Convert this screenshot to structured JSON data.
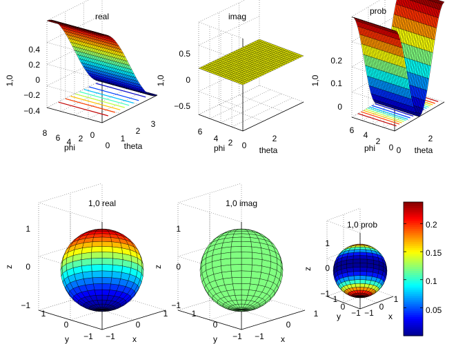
{
  "colors": {
    "jet": [
      "#00008f",
      "#0000ff",
      "#0080ff",
      "#00ffff",
      "#80ff80",
      "#ffff00",
      "#ff8000",
      "#ff0000",
      "#800000"
    ],
    "mesh_line": "#000000",
    "axis": "#000000",
    "grid": "#8c8c8c"
  },
  "chart_data": [
    {
      "type": "surface",
      "title": "real",
      "zlabel": "1,0",
      "xlabel": "theta",
      "ylabel": "phi",
      "z_ticks": [
        "0.4",
        "0.2",
        "0",
        "−0.2",
        "−0.4"
      ],
      "x_ticks": [
        "0",
        "1",
        "2",
        "3"
      ],
      "y_ticks": [
        "8",
        "6",
        "4",
        "2",
        "0"
      ],
      "zlim": [
        -0.49,
        0.49
      ],
      "function": "Y10_real = 0.4886*cos(theta)",
      "x_range": [
        0,
        3.14159
      ],
      "y_range": [
        0,
        6.2832
      ],
      "contour_levels": 8
    },
    {
      "type": "surface",
      "title": "imag",
      "zlabel": "1,0",
      "xlabel": "theta",
      "ylabel": "phi",
      "z_ticks": [
        "0.5",
        "0",
        "−0.5"
      ],
      "x_ticks": [
        "2"
      ],
      "y_ticks": [
        "6",
        "4",
        "2",
        "0"
      ],
      "zlim": [
        -0.8,
        0.8
      ],
      "function": "Y10_imag = 0",
      "x_range": [
        0,
        3.14159
      ],
      "y_range": [
        0,
        6.2832
      ]
    },
    {
      "type": "surface",
      "title": "prob",
      "zlabel": "1,0",
      "xlabel": "theta",
      "ylabel": "phi",
      "z_ticks": [
        "0.2",
        "0.1",
        "0"
      ],
      "x_ticks": [
        "0",
        "2"
      ],
      "y_ticks": [
        "6",
        "4",
        "2",
        "0"
      ],
      "zlim": [
        0,
        0.24
      ],
      "function": "|Y10|^2 = 0.2387*cos^2(theta)",
      "x_range": [
        0,
        3.14159
      ],
      "y_range": [
        0,
        6.2832
      ],
      "contour_levels": 8
    },
    {
      "type": "sphere",
      "title": "1,0 real",
      "xlabel": "x",
      "ylabel": "y",
      "zlabel": "z",
      "z_ticks": [
        "1",
        "0",
        "−1"
      ],
      "y_ticks": [
        "1",
        "0",
        "−1"
      ],
      "x_ticks": [
        "−1",
        "0",
        "1"
      ],
      "color_by": "0.4886*cos(theta)",
      "clim": [
        -0.4886,
        0.4886
      ]
    },
    {
      "type": "sphere",
      "title": "1,0 imag",
      "xlabel": "x",
      "ylabel": "y",
      "zlabel": "z",
      "z_ticks": [
        "1",
        "0",
        "−1"
      ],
      "y_ticks": [
        "1",
        "0",
        "−1"
      ],
      "x_ticks": [
        "−1",
        "0",
        "1"
      ],
      "color_by": "0",
      "clim": [
        -1,
        1
      ]
    },
    {
      "type": "sphere",
      "title": "1,0 prob",
      "xlabel": "x",
      "ylabel": "y",
      "zlabel": "z",
      "z_ticks": [
        "1",
        "0",
        "−1"
      ],
      "y_ticks": [
        "1",
        "0",
        "−1"
      ],
      "x_ticks": [
        "−1",
        "0",
        "1"
      ],
      "color_by": "0.2387*cos^2(theta)",
      "clim": [
        0,
        0.2387
      ]
    },
    {
      "type": "colorbar",
      "ticks": [
        "0.2",
        "0.15",
        "0.1",
        "0.05"
      ],
      "clim": [
        0,
        0.2387
      ]
    }
  ]
}
